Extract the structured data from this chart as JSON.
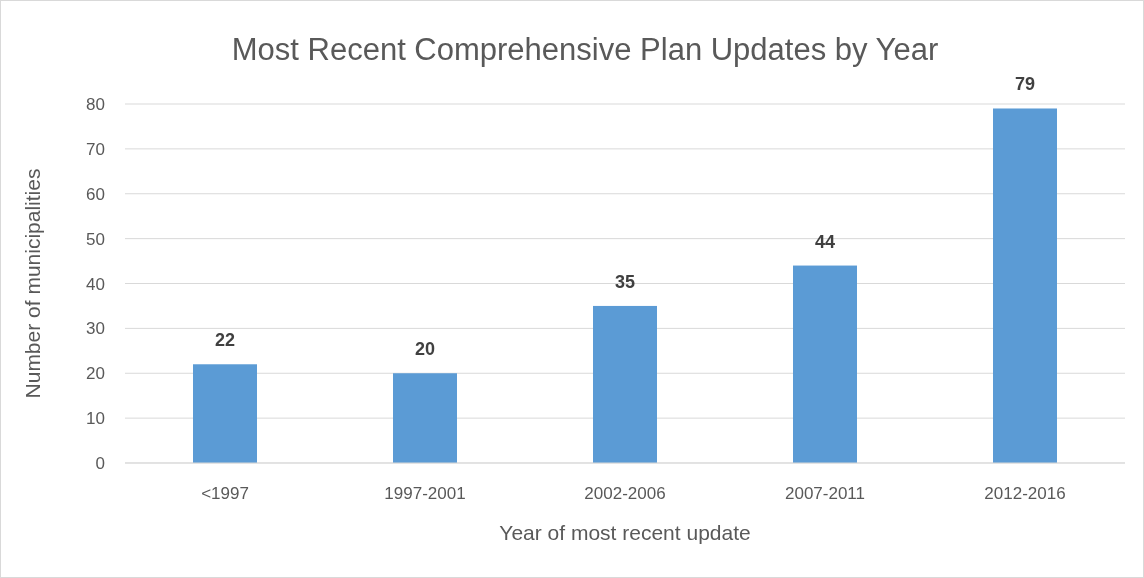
{
  "chart_data": {
    "type": "bar",
    "title": "Most Recent Comprehensive Plan Updates by Year",
    "xlabel": "Year of most recent update",
    "ylabel": "Number of municipalities",
    "categories": [
      "<1997",
      "1997-2001",
      "2002-2006",
      "2007-2011",
      "2012-2016"
    ],
    "values": [
      22,
      20,
      35,
      44,
      79
    ],
    "color": "#5b9bd5",
    "ylim": [
      0,
      80
    ],
    "yticks": [
      0,
      10,
      20,
      30,
      40,
      50,
      60,
      70,
      80
    ],
    "grid": "y",
    "data_labels": true
  }
}
